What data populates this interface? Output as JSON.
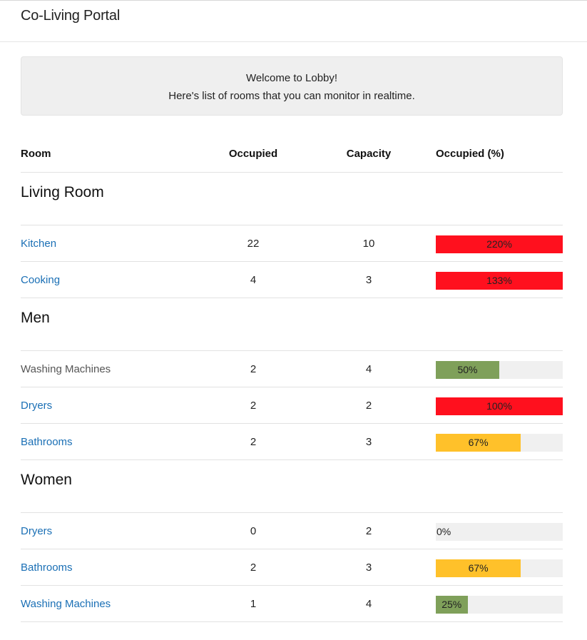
{
  "header": {
    "title": "Co-Living Portal"
  },
  "welcome": {
    "line1": "Welcome to Lobby!",
    "line2": "Here's list of rooms that you can monitor in realtime."
  },
  "table": {
    "columns": {
      "room": "Room",
      "occupied": "Occupied",
      "capacity": "Capacity",
      "percent": "Occupied (%)"
    },
    "groups": [
      {
        "name": "Living Room",
        "rooms": [
          {
            "name": "Kitchen",
            "link": true,
            "occupied": "22",
            "capacity": "10",
            "percent_label": "220%",
            "fill": 1.0,
            "color": "#ff101e"
          },
          {
            "name": "Cooking",
            "link": true,
            "occupied": "4",
            "capacity": "3",
            "percent_label": "133%",
            "fill": 1.0,
            "color": "#ff101e"
          }
        ]
      },
      {
        "name": "Men",
        "rooms": [
          {
            "name": "Washing Machines",
            "link": false,
            "occupied": "2",
            "capacity": "4",
            "percent_label": "50%",
            "fill": 0.5,
            "color": "#7fa05a"
          },
          {
            "name": "Dryers",
            "link": true,
            "occupied": "2",
            "capacity": "2",
            "percent_label": "100%",
            "fill": 1.0,
            "color": "#ff101e"
          },
          {
            "name": "Bathrooms",
            "link": true,
            "occupied": "2",
            "capacity": "3",
            "percent_label": "67%",
            "fill": 0.67,
            "color": "#ffc12a"
          }
        ]
      },
      {
        "name": "Women",
        "rooms": [
          {
            "name": "Dryers",
            "link": true,
            "occupied": "0",
            "capacity": "2",
            "percent_label": "0%",
            "fill": 0.0,
            "color": "#7fa05a"
          },
          {
            "name": "Bathrooms",
            "link": true,
            "occupied": "2",
            "capacity": "3",
            "percent_label": "67%",
            "fill": 0.67,
            "color": "#ffc12a"
          },
          {
            "name": "Washing Machines",
            "link": true,
            "occupied": "1",
            "capacity": "4",
            "percent_label": "25%",
            "fill": 0.25,
            "color": "#7fa05a"
          }
        ]
      }
    ]
  }
}
